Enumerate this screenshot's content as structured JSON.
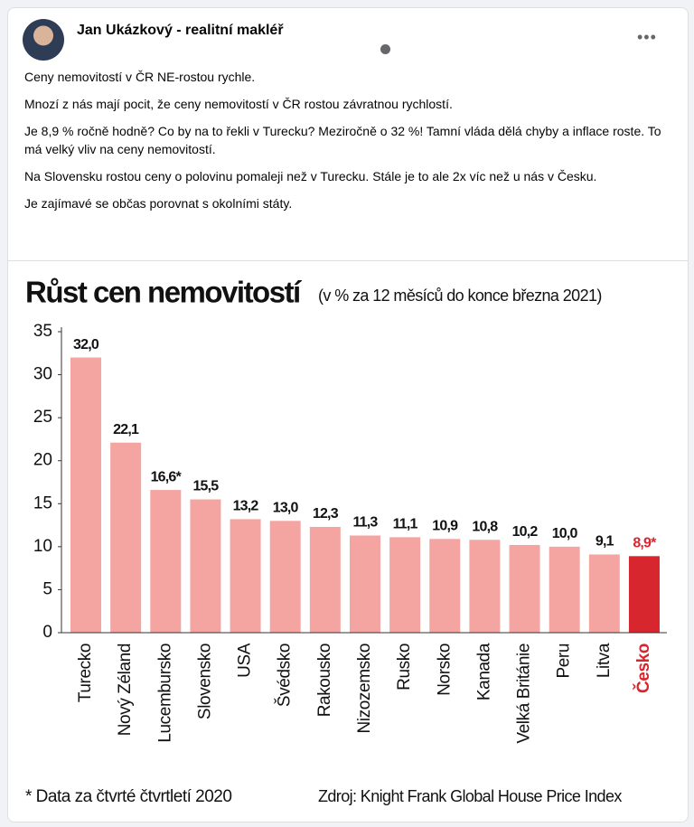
{
  "post": {
    "author": "Jan Ukázkový - realitní makléř",
    "paragraphs": [
      "Ceny nemovitostí v ČR NE-rostou rychle.",
      "Mnozí z nás mají pocit, že ceny nemovitostí v ČR rostou závratnou rychlostí.",
      "Je 8,9 % ročně hodně? Co by na to řekli v Turecku? Meziročně o 32 %! Tamní vláda dělá chyby a inflace roste. To má velký vliv na ceny nemovitostí.",
      "Na Slovensku rostou ceny o polovinu pomaleji než v Turecku. Stále je to ale 2x víc než u nás v Česku.",
      "Je zajímavé se občas porovnat s okolními státy."
    ]
  },
  "chart_data": {
    "type": "bar",
    "title": "Růst cen nemovitostí",
    "subtitle": "(v % za 12 měsíců do konce března 2021)",
    "categories": [
      "Turecko",
      "Nový Zéland",
      "Lucembursko",
      "Slovensko",
      "USA",
      "Švédsko",
      "Rakousko",
      "Nizozemsko",
      "Rusko",
      "Norsko",
      "Kanada",
      "Velká Británie",
      "Peru",
      "Litva",
      "Česko"
    ],
    "values": [
      32.0,
      22.1,
      16.6,
      15.5,
      13.2,
      13.0,
      12.3,
      11.3,
      11.1,
      10.9,
      10.8,
      10.2,
      10.0,
      9.1,
      8.9
    ],
    "value_labels": [
      "32,0",
      "22,1",
      "16,6*",
      "15,5",
      "13,2",
      "13,0",
      "12,3",
      "11,3",
      "11,1",
      "10,9",
      "10,8",
      "10,2",
      "10,0",
      "9,1",
      "8,9*"
    ],
    "colors": [
      "#f4a5a2",
      "#f4a5a2",
      "#f4a5a2",
      "#f4a5a2",
      "#f4a5a2",
      "#f4a5a2",
      "#f4a5a2",
      "#f4a5a2",
      "#f4a5a2",
      "#f4a5a2",
      "#f4a5a2",
      "#f4a5a2",
      "#f4a5a2",
      "#f4a5a2",
      "#d7262d"
    ],
    "ylim": [
      0,
      35
    ],
    "yticks": [
      0,
      5,
      10,
      15,
      20,
      25,
      30,
      35
    ],
    "footnote": "* Data za čtvrté čtvrtletí 2020",
    "source": "Zdroj: Knight Frank Global House Price Index"
  }
}
